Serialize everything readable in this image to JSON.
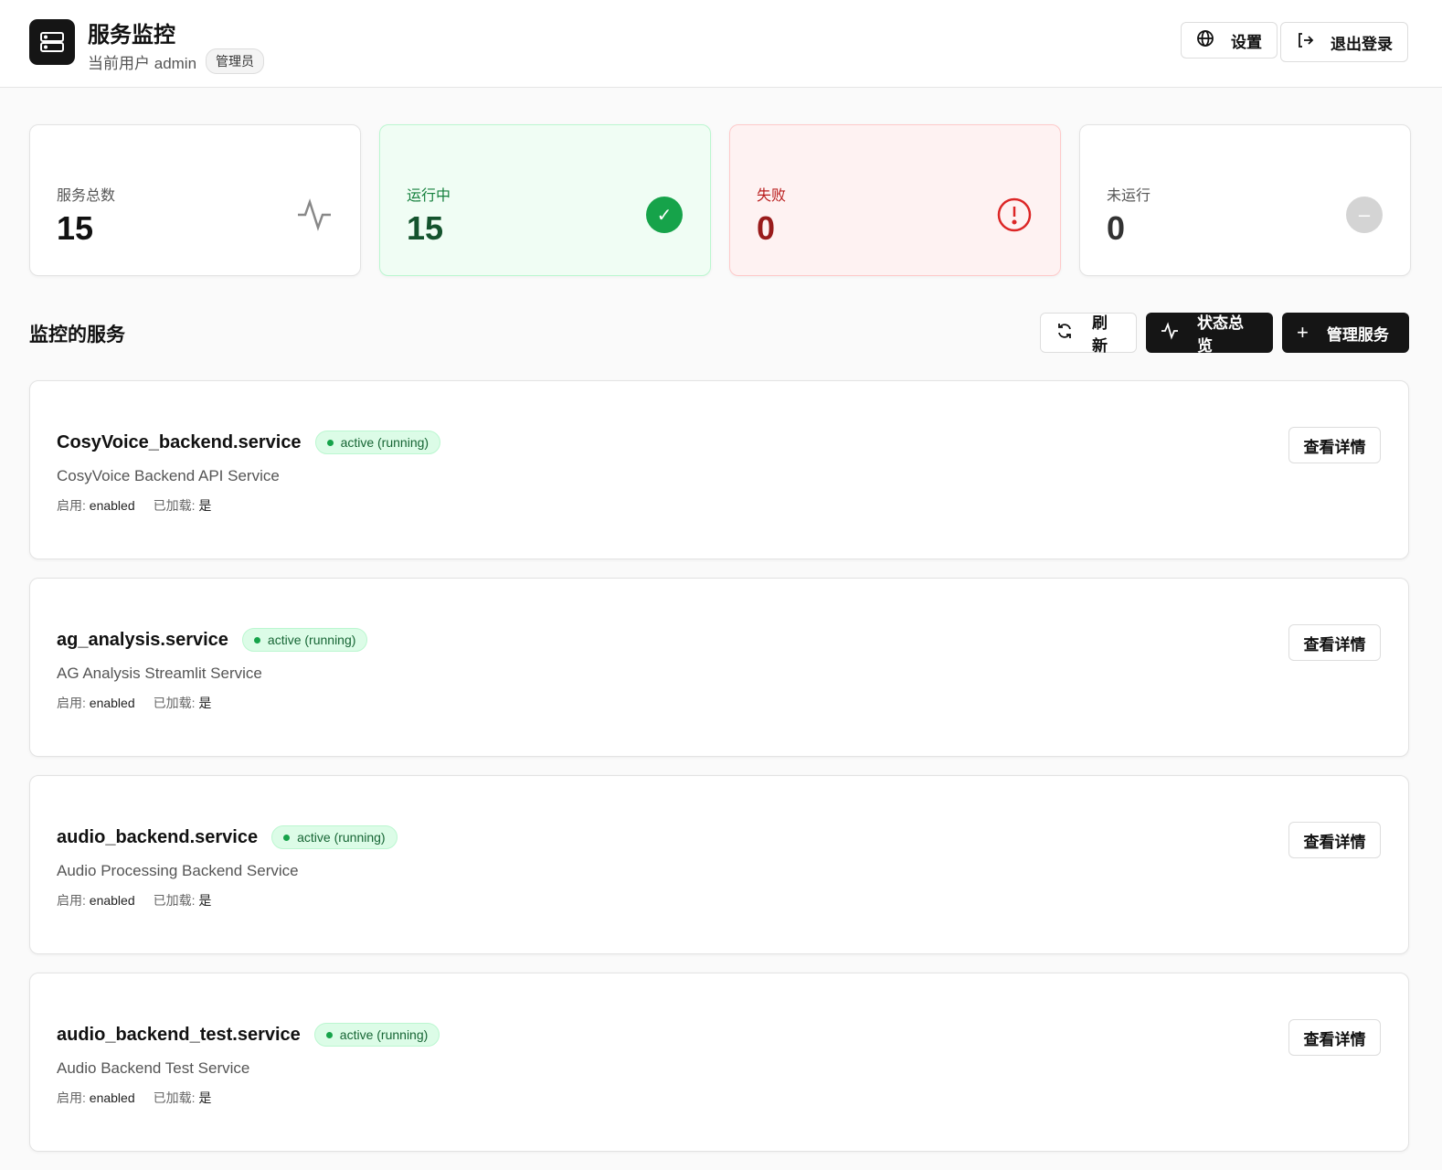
{
  "header": {
    "title": "服务监控",
    "user_prefix": "当前用户",
    "username": "admin",
    "role": "管理员",
    "settings_label": "设置",
    "logout_label": "退出登录"
  },
  "stats": [
    {
      "label": "服务总数",
      "value": "15",
      "icon": "activity-icon"
    },
    {
      "label": "运行中",
      "value": "15",
      "icon": "check-circle-icon",
      "color": "#16a34a"
    },
    {
      "label": "失败",
      "value": "0",
      "icon": "alert-circle-icon",
      "color": "#dc2626"
    },
    {
      "label": "未运行",
      "value": "0",
      "icon": "minus-circle-icon",
      "color": "#d4d4d4"
    }
  ],
  "section": {
    "title": "监控的服务",
    "refresh_label": "刷新",
    "overview_label": "状态总览",
    "manage_label": "管理服务"
  },
  "services": [
    {
      "name": "CosyVoice_backend.service",
      "status": "active (running)",
      "description": "CosyVoice Backend API Service",
      "enabled_label": "启用:",
      "enabled": "enabled",
      "loaded_label": "已加载:",
      "loaded": "是",
      "details_label": "查看详情"
    },
    {
      "name": "ag_analysis.service",
      "status": "active (running)",
      "description": "AG Analysis Streamlit Service",
      "enabled_label": "启用:",
      "enabled": "enabled",
      "loaded_label": "已加载:",
      "loaded": "是",
      "details_label": "查看详情"
    },
    {
      "name": "audio_backend.service",
      "status": "active (running)",
      "description": "Audio Processing Backend Service",
      "enabled_label": "启用:",
      "enabled": "enabled",
      "loaded_label": "已加载:",
      "loaded": "是",
      "details_label": "查看详情"
    },
    {
      "name": "audio_backend_test.service",
      "status": "active (running)",
      "description": "Audio Backend Test Service",
      "enabled_label": "启用:",
      "enabled": "enabled",
      "loaded_label": "已加载:",
      "loaded": "是",
      "details_label": "查看详情"
    }
  ]
}
